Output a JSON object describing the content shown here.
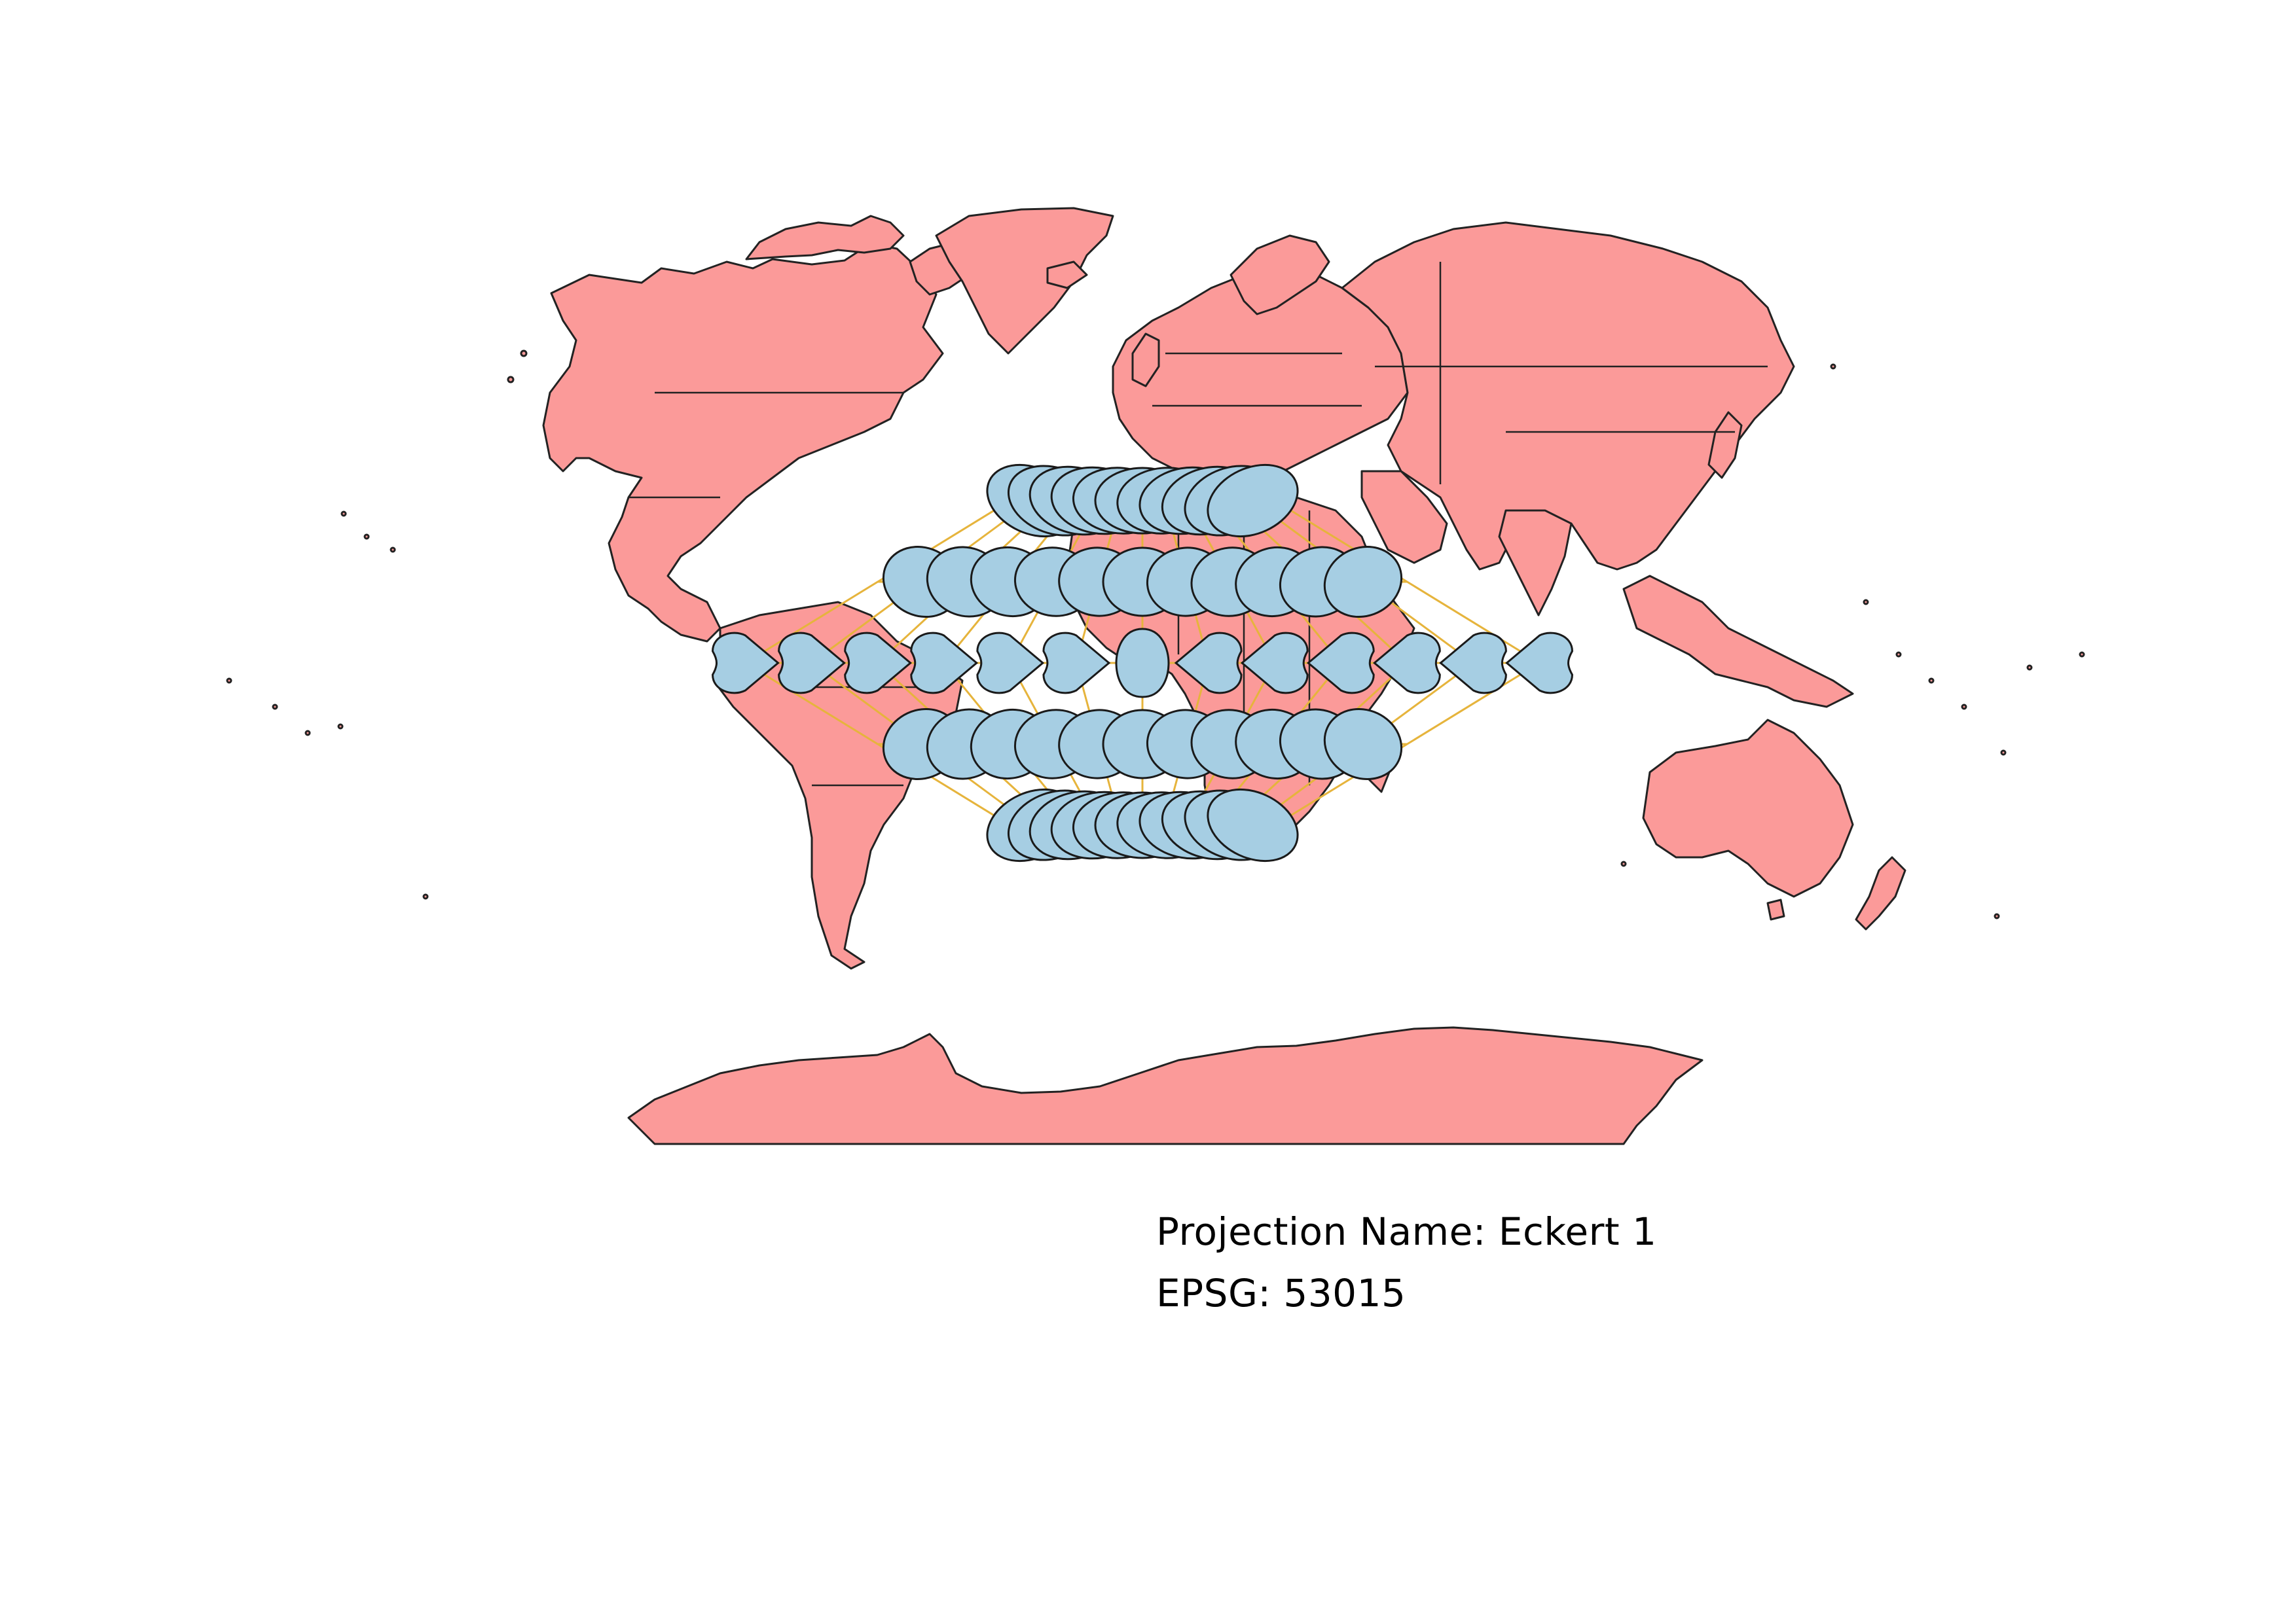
{
  "map": {
    "projection_label": "Projection Name",
    "projection_value": "Eckert 1",
    "epsg_label": "EPSG",
    "epsg_value": "53015",
    "separator": ":",
    "colors": {
      "land": "#fb9a99",
      "tissot": "#a6cee3",
      "graticule": "#e6b43c",
      "outline": "#222222"
    },
    "graticule": {
      "latitudes": [
        -60,
        -30,
        0,
        30,
        60
      ],
      "longitudes": [
        -180,
        -150,
        -120,
        -90,
        -60,
        -30,
        0,
        30,
        60,
        90,
        120,
        150,
        180
      ]
    }
  }
}
